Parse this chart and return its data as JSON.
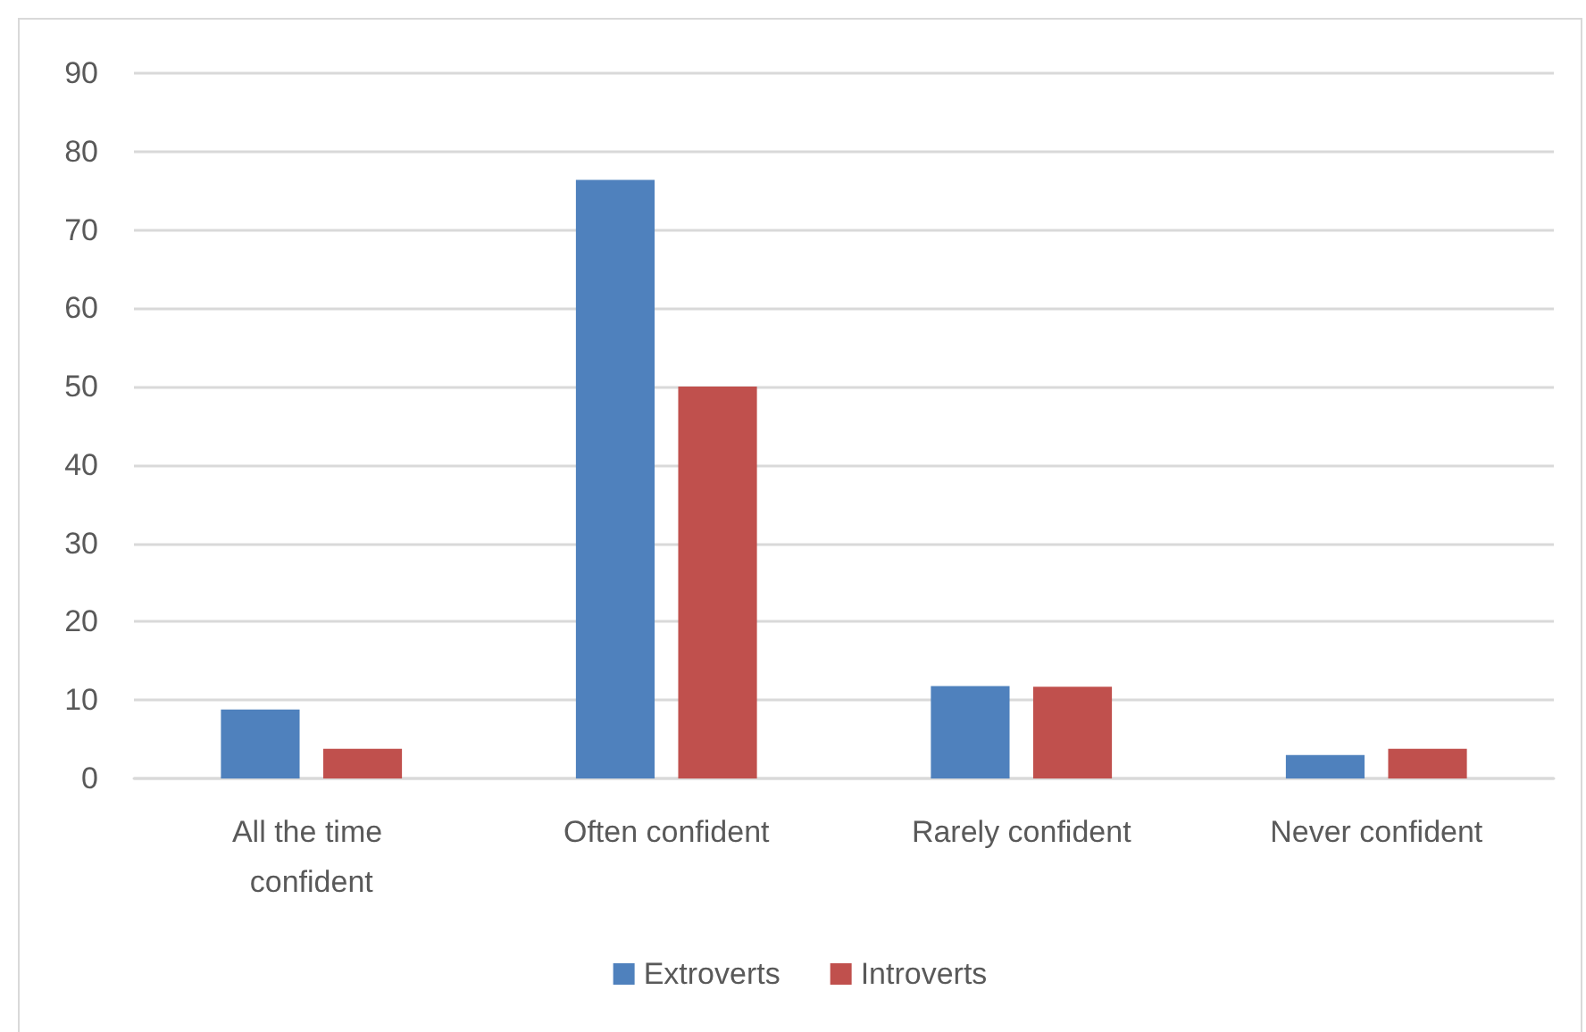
{
  "chart_data": {
    "type": "bar",
    "categories": [
      "All the time confident",
      "Often confident",
      "Rarely confident",
      "Never confident"
    ],
    "series": [
      {
        "name": "Extroverts",
        "color": "#4f81bd",
        "values": [
          8.8,
          76.4,
          11.8,
          3.0
        ]
      },
      {
        "name": "Introverts",
        "color": "#c0504d",
        "values": [
          3.8,
          50,
          11.7,
          3.8
        ]
      }
    ],
    "ylim": [
      0,
      90
    ],
    "yticks": [
      0,
      10,
      20,
      30,
      40,
      50,
      60,
      70,
      80,
      90
    ],
    "grid": "y",
    "legend": "bottom"
  }
}
